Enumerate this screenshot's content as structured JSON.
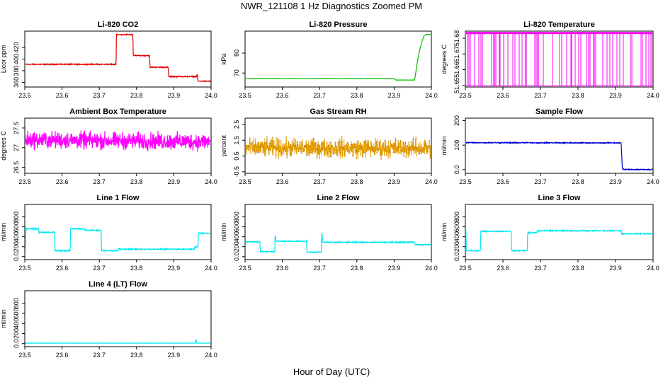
{
  "page": {
    "title": "NWR_121108  1 Hz Diagnostics Zoomed PM",
    "xlabel": "Hour of Day (UTC)"
  },
  "chart_data": [
    {
      "type": "line",
      "title": "Li-820 CO2",
      "xlabel": "",
      "ylabel": "Licor ppm",
      "xlim": [
        23.5,
        24.0
      ],
      "xticks": [
        23.5,
        23.6,
        23.7,
        23.8,
        23.9,
        24.0
      ],
      "ylim": [
        352,
        448
      ],
      "yticks": [
        360,
        380,
        400,
        420
      ],
      "color": "#e00000",
      "noise": 0.6,
      "series": [
        {
          "x": [
            23.5,
            23.745,
            23.746,
            23.79,
            23.791,
            23.835,
            23.836,
            23.885,
            23.886,
            23.962,
            23.963,
            23.965,
            23.966,
            24.0
          ],
          "y": [
            391,
            391,
            442,
            442,
            406,
            406,
            386,
            386,
            370,
            370,
            374,
            362,
            362,
            362
          ]
        }
      ]
    },
    {
      "type": "line",
      "title": "Li-820 Pressure",
      "xlabel": "",
      "ylabel": "kPa",
      "xlim": [
        23.5,
        24.0
      ],
      "xticks": [
        23.5,
        23.6,
        23.7,
        23.8,
        23.9,
        24.0
      ],
      "ylim": [
        63,
        91
      ],
      "yticks": [
        70,
        80
      ],
      "color": "#00c000",
      "noise": 0.05,
      "series": [
        {
          "x": [
            23.5,
            23.9,
            23.905,
            23.955,
            23.958,
            23.962,
            23.966,
            23.97,
            23.975,
            23.98,
            23.985,
            24.0
          ],
          "y": [
            67.2,
            67.2,
            66.5,
            66.5,
            70.0,
            75.0,
            79.0,
            82.5,
            86.0,
            88.5,
            89.3,
            89.3
          ]
        }
      ]
    },
    {
      "type": "line",
      "title": "Li-820 Temperature",
      "xlabel": "",
      "ylabel": "degrees C",
      "xlim": [
        23.5,
        24.0
      ],
      "xticks": [
        23.5,
        23.6,
        23.7,
        23.8,
        23.9,
        24.0
      ],
      "ylim": [
        51.649,
        51.6845
      ],
      "yticks": [
        51.65,
        51.66,
        51.67,
        51.68
      ],
      "color": "#ff00ff",
      "style": "toggle",
      "high": 51.6835,
      "low": 51.6495,
      "series": [
        {
          "x": [
            23.5,
            24.0
          ],
          "y": [
            51.6835,
            51.6495
          ]
        }
      ]
    },
    {
      "type": "line",
      "title": "Ambient Box Temperature",
      "xlabel": "",
      "ylabel": "degrees C",
      "xlim": [
        23.5,
        24.0
      ],
      "xticks": [
        23.5,
        23.6,
        23.7,
        23.8,
        23.9,
        24.0
      ],
      "ylim": [
        26.35,
        27.75
      ],
      "yticks": [
        26.5,
        27.0,
        27.5
      ],
      "color": "#ff00ff",
      "noise": 0.16,
      "series": [
        {
          "x": [
            23.5,
            24.0
          ],
          "y": [
            27.2,
            27.15
          ]
        }
      ]
    },
    {
      "type": "line",
      "title": "Gas Stream RH",
      "xlabel": "",
      "ylabel": "percent",
      "xlim": [
        23.5,
        24.0
      ],
      "xticks": [
        23.5,
        23.6,
        23.7,
        23.8,
        23.9,
        24.0
      ],
      "ylim": [
        -0.6,
        2.9
      ],
      "yticks": [
        -0.5,
        0.5,
        1.5,
        2.5
      ],
      "color": "#e8a000",
      "noise": 0.45,
      "markers": true,
      "series": [
        {
          "x": [
            23.5,
            24.0
          ],
          "y": [
            1.0,
            1.0
          ]
        }
      ]
    },
    {
      "type": "line",
      "title": "Sample Flow",
      "xlabel": "",
      "ylabel": "ml/min",
      "xlim": [
        23.5,
        24.0
      ],
      "xticks": [
        23.5,
        23.6,
        23.7,
        23.8,
        23.9,
        24.0
      ],
      "ylim": [
        -15,
        210
      ],
      "yticks": [
        0,
        100,
        200
      ],
      "color": "#0000d0",
      "noise": 1.5,
      "series": [
        {
          "x": [
            23.5,
            23.915,
            23.918,
            23.922,
            23.93,
            24.0
          ],
          "y": [
            110,
            109,
            5,
            0,
            1,
            0
          ]
        }
      ]
    },
    {
      "type": "line",
      "title": "Line 1 Flow",
      "xlabel": "",
      "ylabel": "ml/min",
      "xlim": [
        23.5,
        24.0
      ],
      "xticks": [
        23.5,
        23.6,
        23.7,
        23.8,
        23.9,
        24.0
      ],
      "ylim": [
        -60,
        1050
      ],
      "yticks": [
        0,
        200,
        400,
        600,
        800
      ],
      "color": "#00e8f0",
      "noise": 8,
      "series": [
        {
          "x": [
            23.5,
            23.502,
            23.503,
            23.537,
            23.538,
            23.58,
            23.581,
            23.622,
            23.623,
            23.66,
            23.661,
            23.705,
            23.706,
            23.75,
            23.751,
            23.955,
            23.956,
            23.965,
            23.966,
            24.0
          ],
          "y": [
            130,
            130,
            560,
            560,
            490,
            490,
            120,
            120,
            560,
            560,
            530,
            530,
            120,
            120,
            150,
            150,
            200,
            200,
            470,
            470
          ]
        }
      ]
    },
    {
      "type": "line",
      "title": "Line 2 Flow",
      "xlabel": "",
      "ylabel": "ml/min",
      "xlim": [
        23.5,
        24.0
      ],
      "xticks": [
        23.5,
        23.6,
        23.7,
        23.8,
        23.9,
        24.0
      ],
      "ylim": [
        -60,
        1050
      ],
      "yticks": [
        0,
        200,
        400,
        600,
        800
      ],
      "color": "#00e8f0",
      "noise": 8,
      "series": [
        {
          "x": [
            23.5,
            23.54,
            23.541,
            23.58,
            23.5805,
            23.582,
            23.583,
            23.665,
            23.666,
            23.705,
            23.7055,
            23.707,
            23.708,
            23.955,
            23.956,
            24.0
          ],
          "y": [
            300,
            300,
            100,
            100,
            420,
            420,
            310,
            310,
            90,
            90,
            450,
            450,
            290,
            290,
            240,
            240
          ]
        }
      ]
    },
    {
      "type": "line",
      "title": "Line 3 Flow",
      "xlabel": "",
      "ylabel": "ml/min",
      "xlim": [
        23.5,
        24.0
      ],
      "xticks": [
        23.5,
        23.6,
        23.7,
        23.8,
        23.9,
        24.0
      ],
      "ylim": [
        -60,
        1050
      ],
      "yticks": [
        0,
        200,
        400,
        600,
        800
      ],
      "color": "#00e8f0",
      "noise": 8,
      "series": [
        {
          "x": [
            23.5,
            23.5015,
            23.5025,
            23.54,
            23.541,
            23.622,
            23.623,
            23.665,
            23.666,
            23.69,
            23.691,
            23.915,
            23.916,
            24.0
          ],
          "y": [
            530,
            530,
            120,
            120,
            510,
            510,
            120,
            120,
            480,
            480,
            520,
            520,
            460,
            460
          ]
        }
      ]
    },
    {
      "type": "line",
      "title": "Line 4 (LT) Flow",
      "xlabel": "",
      "ylabel": "ml/min",
      "xlim": [
        23.5,
        24.0
      ],
      "xticks": [
        23.5,
        23.6,
        23.7,
        23.8,
        23.9,
        24.0
      ],
      "ylim": [
        -60,
        1050
      ],
      "yticks": [
        0,
        200,
        400,
        600,
        800
      ],
      "color": "#00e8f0",
      "noise": 2,
      "series": [
        {
          "x": [
            23.5,
            23.958,
            23.959,
            23.96,
            23.961,
            24.0
          ],
          "y": [
            10,
            10,
            80,
            80,
            10,
            10
          ]
        }
      ]
    }
  ]
}
